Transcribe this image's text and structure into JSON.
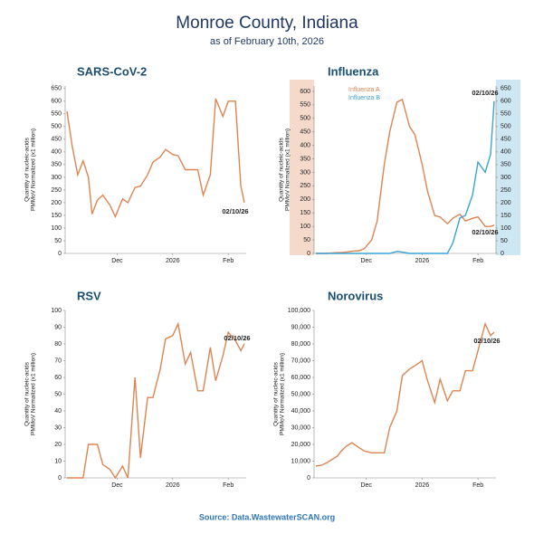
{
  "title": "Monroe County, Indiana",
  "subtitle": "as of February 10th, 2026",
  "source": "Source: Data.WastewaterSCAN.org",
  "chart_data": [
    {
      "type": "line",
      "title": "SARS-CoV-2",
      "ylabel": [
        "Quantity of nucleic-acids",
        "PMMoV Normalized (x1 million)"
      ],
      "x": [
        -59,
        -56,
        -53,
        -50,
        -47,
        -45,
        -42,
        -39,
        -35,
        -32,
        -28,
        -25,
        -21,
        -18,
        -14,
        -11,
        -7,
        -4,
        0,
        3,
        7,
        10,
        14,
        17,
        21,
        24,
        28,
        31,
        35,
        38,
        40
      ],
      "xlim": [
        -60,
        41
      ],
      "xticks": [
        {
          "value": -31,
          "label": "Dec"
        },
        {
          "value": 0,
          "label": "2026"
        },
        {
          "value": 31,
          "label": "Feb"
        }
      ],
      "ylim": [
        0,
        660
      ],
      "yticks": [
        0,
        50,
        100,
        150,
        200,
        250,
        300,
        350,
        400,
        450,
        500,
        550,
        600,
        650
      ],
      "series": [
        {
          "name": "SARS-CoV-2",
          "color": "#dd8452",
          "values": [
            560,
            420,
            310,
            365,
            300,
            155,
            210,
            230,
            190,
            145,
            215,
            200,
            260,
            265,
            310,
            360,
            380,
            410,
            390,
            385,
            330,
            330,
            330,
            230,
            310,
            610,
            540,
            600,
            600,
            265,
            200
          ]
        }
      ],
      "annotations": [
        "02/10/26"
      ]
    },
    {
      "type": "line",
      "title": "Influenza",
      "ylabel": [
        "Quantity of nucleic-acids",
        "PMMoV Normalized (x1 million)"
      ],
      "x": [
        -59,
        -56,
        -53,
        -50,
        -47,
        -45,
        -42,
        -39,
        -35,
        -32,
        -28,
        -25,
        -21,
        -18,
        -14,
        -11,
        -7,
        -4,
        0,
        3,
        7,
        10,
        14,
        17,
        21,
        24,
        28,
        31,
        35,
        38,
        40
      ],
      "xlim": [
        -60,
        41
      ],
      "xticks": [
        {
          "value": -31,
          "label": "Dec"
        },
        {
          "value": 0,
          "label": "2026"
        },
        {
          "value": 31,
          "label": "Feb"
        }
      ],
      "ylim": [
        0,
        620
      ],
      "yticks": [
        0,
        50,
        100,
        150,
        200,
        250,
        300,
        350,
        400,
        450,
        500,
        550,
        600
      ],
      "y2lim": [
        0,
        660
      ],
      "y2ticks": [
        0,
        50,
        100,
        150,
        200,
        250,
        300,
        350,
        400,
        450,
        500,
        550,
        600,
        650
      ],
      "legend": true,
      "series": [
        {
          "name": "Influenza A",
          "color": "#dd8452",
          "values": [
            0,
            0,
            0,
            2,
            3,
            3,
            5,
            8,
            10,
            18,
            50,
            120,
            330,
            450,
            560,
            570,
            470,
            440,
            330,
            230,
            140,
            135,
            110,
            130,
            145,
            120,
            130,
            135,
            100,
            100,
            105
          ]
        },
        {
          "name": "Influenza B",
          "color": "#3ba3d0",
          "axis": "y2",
          "values": [
            0,
            0,
            0,
            0,
            0,
            0,
            0,
            0,
            0,
            0,
            0,
            0,
            0,
            0,
            8,
            5,
            0,
            0,
            0,
            0,
            0,
            0,
            0,
            40,
            140,
            150,
            230,
            360,
            320,
            390,
            600
          ]
        }
      ],
      "annotations": [
        "02/10/26",
        "02/10/26"
      ]
    },
    {
      "type": "line",
      "title": "RSV",
      "ylabel": [
        "Quantity of nucleic-acids",
        "PMMoV Normalized (x1 million)"
      ],
      "x": [
        -59,
        -56,
        -53,
        -50,
        -47,
        -45,
        -42,
        -39,
        -35,
        -32,
        -28,
        -25,
        -21,
        -18,
        -14,
        -11,
        -7,
        -4,
        0,
        3,
        7,
        10,
        14,
        17,
        21,
        24,
        28,
        31,
        35,
        38,
        40
      ],
      "xlim": [
        -60,
        41
      ],
      "xticks": [
        {
          "value": -31,
          "label": "Dec"
        },
        {
          "value": 0,
          "label": "2026"
        },
        {
          "value": 31,
          "label": "Feb"
        }
      ],
      "ylim": [
        0,
        100
      ],
      "yticks": [
        0,
        10,
        20,
        30,
        40,
        50,
        60,
        70,
        80,
        90,
        100
      ],
      "series": [
        {
          "name": "RSV",
          "color": "#dd8452",
          "values": [
            0,
            0,
            0,
            0,
            20,
            20,
            20,
            8,
            5,
            0,
            7,
            0,
            60,
            12,
            48,
            48,
            65,
            83,
            85,
            92,
            68,
            75,
            52,
            52,
            78,
            58,
            73,
            87,
            82,
            76,
            80
          ]
        }
      ],
      "annotations": [
        "02/10/26"
      ]
    },
    {
      "type": "line",
      "title": "Norovirus",
      "ylabel": [
        "Quantity of nucleic-acids",
        "PMMoV Normalized (x1 million)"
      ],
      "x": [
        -59,
        -56,
        -53,
        -50,
        -47,
        -45,
        -42,
        -39,
        -35,
        -32,
        -28,
        -25,
        -21,
        -18,
        -14,
        -11,
        -7,
        -4,
        0,
        3,
        7,
        10,
        14,
        17,
        21,
        24,
        28,
        31,
        35,
        38,
        40
      ],
      "xlim": [
        -60,
        41
      ],
      "xticks": [
        {
          "value": -31,
          "label": "Dec"
        },
        {
          "value": 0,
          "label": "2026"
        },
        {
          "value": 31,
          "label": "Feb"
        }
      ],
      "ylim": [
        0,
        100000
      ],
      "yticks": [
        0,
        {
          "value": 10000,
          "label": "10,000"
        },
        {
          "value": 20000,
          "label": "20,000"
        },
        {
          "value": 30000,
          "label": "30,000"
        },
        {
          "value": 40000,
          "label": "40,000"
        },
        {
          "value": 50000,
          "label": "50,000"
        },
        {
          "value": 60000,
          "label": "60,000"
        },
        {
          "value": 70000,
          "label": "70,000"
        },
        {
          "value": 80000,
          "label": "80,000"
        },
        {
          "value": 90000,
          "label": "90,000"
        },
        {
          "value": 100000,
          "label": "100,000"
        }
      ],
      "series": [
        {
          "name": "Norovirus",
          "color": "#dd8452",
          "values": [
            7000,
            7500,
            9000,
            11000,
            13000,
            16000,
            19000,
            21000,
            18000,
            16000,
            15000,
            15000,
            15000,
            30000,
            40000,
            61000,
            65000,
            67000,
            70000,
            58000,
            45000,
            59000,
            46000,
            52000,
            52000,
            64000,
            64000,
            76000,
            92000,
            85000,
            87000
          ]
        }
      ],
      "annotations": [
        "02/10/26"
      ]
    }
  ]
}
